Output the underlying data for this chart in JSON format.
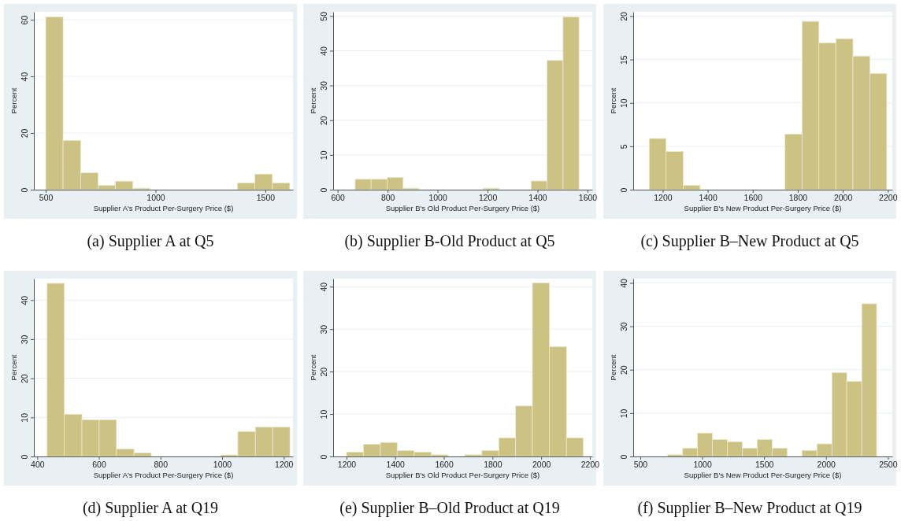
{
  "chart_data": [
    {
      "type": "histogram",
      "title": "(a)  Supplier A at Q5",
      "xlabel": "Supplier A's Product Per-Surgery Price ($)",
      "ylabel": "Percent",
      "color": "#ccc283",
      "grid": "y",
      "xlim": [
        446,
        1626
      ],
      "ylim": [
        0,
        62.8
      ],
      "xticks": [
        500,
        1000,
        1500
      ],
      "yticks": [
        0,
        20,
        40,
        60
      ],
      "bins": [
        500,
        579,
        659,
        738,
        817,
        897,
        976,
        1056,
        1135,
        1214,
        1294,
        1373,
        1452,
        1532,
        1611
      ],
      "values": [
        61,
        17.4,
        6,
        1.5,
        3,
        0.5,
        0,
        0,
        0,
        0,
        0,
        2.4,
        5.5,
        2.4
      ]
    },
    {
      "type": "histogram",
      "title": "(b)  Supplier B-Old Product at Q5",
      "xlabel": "Supplier B's Old Product Per-Surgery Price ($)",
      "ylabel": "Percent",
      "color": "#ccc283",
      "grid": "y",
      "xlim": [
        582,
        1619
      ],
      "ylim": [
        0,
        51.2
      ],
      "xticks": [
        600,
        800,
        1000,
        1200,
        1400,
        1600
      ],
      "yticks": [
        0,
        10,
        20,
        30,
        40,
        50
      ],
      "bins": [
        670,
        734,
        798,
        862,
        926,
        990,
        1054,
        1118,
        1182,
        1246,
        1310,
        1374,
        1438,
        1502,
        1566
      ],
      "values": [
        3,
        3,
        3.5,
        0.4,
        0,
        0,
        0,
        0,
        0.4,
        0,
        0,
        2.5,
        37.2,
        49.7
      ]
    },
    {
      "type": "histogram",
      "title": "(c)  Supplier B–New Product at Q5",
      "xlabel": "Supplier B's New Product Per-Surgery Price ($)",
      "ylabel": "Percent",
      "color": "#ccc283",
      "grid": "y",
      "xlim": [
        1069,
        2220
      ],
      "ylim": [
        0,
        20.5
      ],
      "xticks": [
        1200,
        1400,
        1600,
        1800,
        2000,
        2200
      ],
      "yticks": [
        0,
        5,
        10,
        15,
        20
      ],
      "bins": [
        1140,
        1215,
        1291,
        1366,
        1442,
        1517,
        1592,
        1668,
        1743,
        1819,
        1894,
        1969,
        2045,
        2120,
        2195
      ],
      "values": [
        5.9,
        4.4,
        0.5,
        0,
        0,
        0,
        0,
        0,
        6.4,
        19.4,
        16.9,
        17.4,
        15.4,
        13.4
      ]
    },
    {
      "type": "histogram",
      "title": "(d)  Supplier A at Q19",
      "xlabel": "Supplier A's Product Per-Surgery Price ($)",
      "ylabel": "Percent",
      "color": "#ccc283",
      "grid": "y",
      "xlim": [
        389,
        1230
      ],
      "ylim": [
        0,
        45.5
      ],
      "xticks": [
        400,
        600,
        800,
        1000,
        1200
      ],
      "yticks": [
        0,
        10,
        20,
        30,
        40
      ],
      "bins": [
        432,
        488,
        545,
        601,
        657,
        714,
        770,
        826,
        883,
        939,
        995,
        1051,
        1108,
        1164,
        1220
      ],
      "values": [
        44.3,
        10.8,
        9.4,
        9.4,
        1.9,
        0.9,
        0,
        0,
        0,
        0,
        0.4,
        6.4,
        7.5,
        7.5
      ]
    },
    {
      "type": "histogram",
      "title": "(e)  Supplier B–Old Product at Q19",
      "xlabel": "Supplier B's Old Product Per-Surgery Price ($)",
      "ylabel": "Percent",
      "color": "#ccc283",
      "grid": "y",
      "xlim": [
        1145,
        2210
      ],
      "ylim": [
        0,
        41.9
      ],
      "xticks": [
        1200,
        1400,
        1600,
        1800,
        2000,
        2200
      ],
      "yticks": [
        0,
        10,
        20,
        30,
        40
      ],
      "bins": [
        1200,
        1270,
        1339,
        1408,
        1478,
        1548,
        1617,
        1686,
        1756,
        1826,
        1895,
        1964,
        2034,
        2104,
        2173
      ],
      "values": [
        1,
        2.9,
        3.3,
        1.4,
        1,
        0.4,
        0,
        0.4,
        1.4,
        4.4,
        11.9,
        40.9,
        25.9,
        4.4
      ]
    },
    {
      "type": "histogram",
      "title": "(f) Supplier B–New Product at Q19",
      "xlabel": "Supplier B's New Product Per-Surgery Price ($)",
      "ylabel": "Percent",
      "color": "#ccc283",
      "grid": "y",
      "xlim": [
        443,
        2536
      ],
      "ylim": [
        0,
        41
      ],
      "xticks": [
        500,
        1000,
        1500,
        2000,
        2500
      ],
      "yticks": [
        0,
        10,
        20,
        30,
        40
      ],
      "bins": [
        721,
        842,
        962,
        1083,
        1203,
        1324,
        1445,
        1565,
        1686,
        1806,
        1927,
        2048,
        2168,
        2289,
        2409
      ],
      "values": [
        0.4,
        1.9,
        5.4,
        3.9,
        3.4,
        1.9,
        3.9,
        1.9,
        0,
        1.4,
        2.9,
        19.3,
        17.3,
        35.2
      ]
    }
  ]
}
